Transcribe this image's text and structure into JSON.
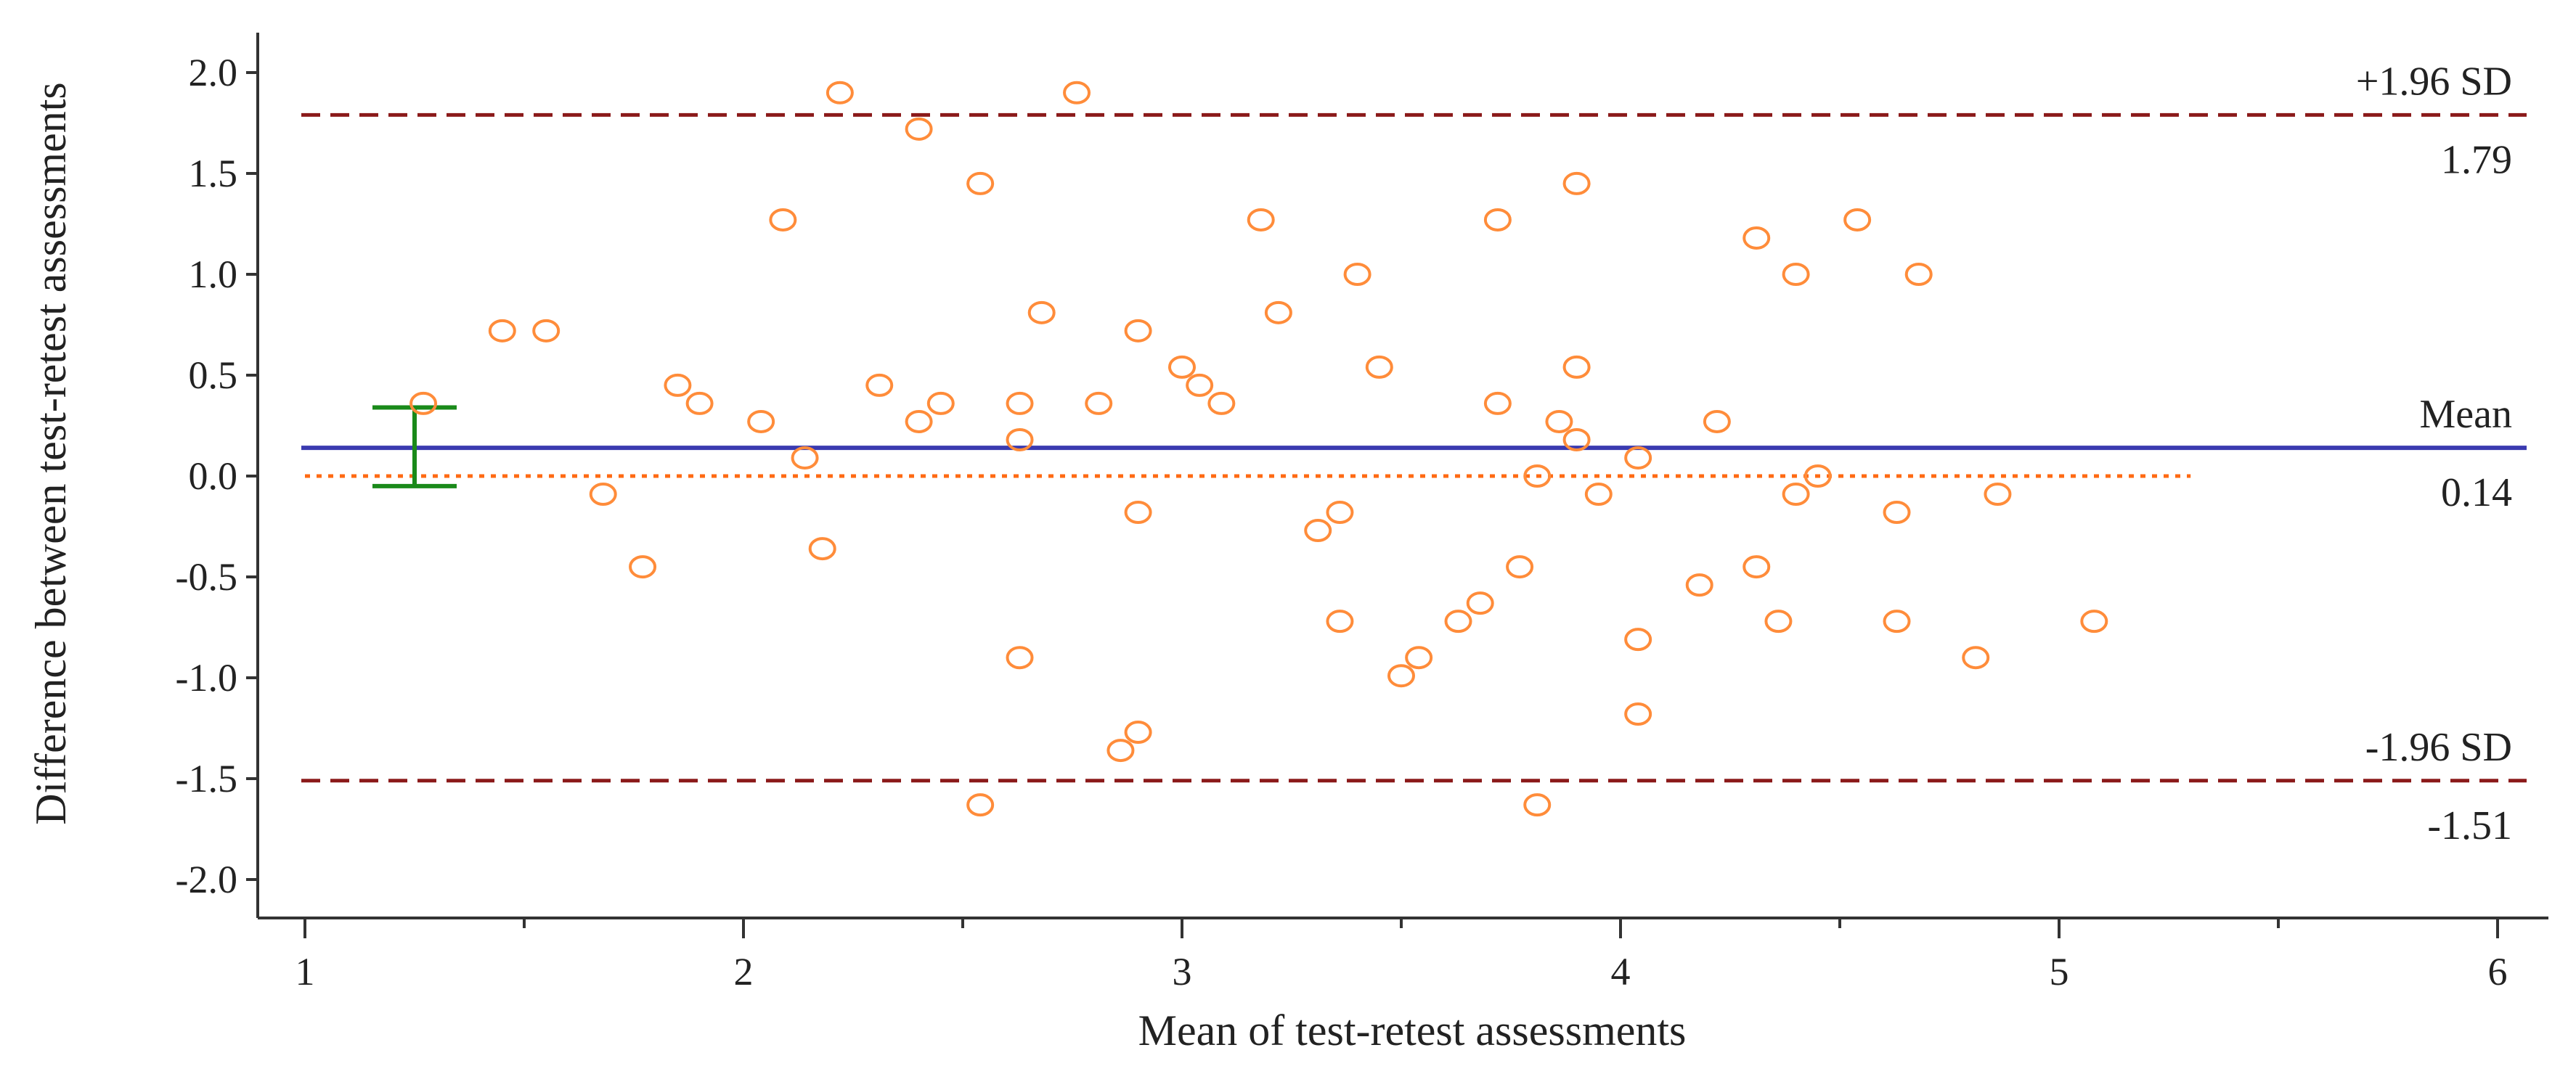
{
  "chart_data": {
    "type": "scatter",
    "title": "",
    "xlabel": "Mean of test-retest assessments",
    "ylabel": "Difference between test-retest assessments",
    "xlim": [
      1,
      6
    ],
    "ylim": [
      -2.1,
      2.2
    ],
    "x_ticks": [
      1,
      2,
      3,
      4,
      5,
      6
    ],
    "x_tick_labels": [
      "1",
      "2",
      "3",
      "4",
      "5",
      "6"
    ],
    "y_ticks": [
      2.0,
      1.5,
      1.0,
      0.5,
      0.0,
      -0.5,
      -1.0,
      -1.5,
      -2.0
    ],
    "y_tick_labels": [
      "2.0",
      "1.5",
      "1.0",
      "0.5",
      "0.0",
      "-0.5",
      "-1.0",
      "-1.5",
      "-2.0"
    ],
    "grid": false,
    "reference_lines": {
      "upper": {
        "value": 1.79,
        "label": "+1.96 SD",
        "value_label": "1.79",
        "color": "#8b1a1a",
        "style": "dashed"
      },
      "mean": {
        "value": 0.14,
        "label": "Mean",
        "value_label": "0.14",
        "color": "#3a3ab0",
        "style": "solid"
      },
      "lower": {
        "value": -1.51,
        "label": "-1.96 SD",
        "value_label": "-1.51",
        "color": "#8b1a1a",
        "style": "dashed"
      },
      "zero": {
        "value": 0.0,
        "color": "#ff6a13",
        "style": "dotted",
        "x_end": 5.3
      }
    },
    "mean_ci": {
      "x": 1.25,
      "lower": -0.05,
      "upper": 0.34,
      "color": "#1a8a1a"
    },
    "marker_color": "#ff8c3a",
    "points": [
      {
        "x": 1.27,
        "y": 0.36
      },
      {
        "x": 1.45,
        "y": 0.72
      },
      {
        "x": 1.55,
        "y": 0.72
      },
      {
        "x": 1.68,
        "y": -0.09
      },
      {
        "x": 1.77,
        "y": -0.45
      },
      {
        "x": 1.85,
        "y": 0.45
      },
      {
        "x": 1.9,
        "y": 0.36
      },
      {
        "x": 2.04,
        "y": 0.27
      },
      {
        "x": 2.09,
        "y": 1.27
      },
      {
        "x": 2.14,
        "y": 0.09
      },
      {
        "x": 2.18,
        "y": -0.36
      },
      {
        "x": 2.22,
        "y": 1.9
      },
      {
        "x": 2.31,
        "y": 0.45
      },
      {
        "x": 2.4,
        "y": 1.72
      },
      {
        "x": 2.4,
        "y": 0.27
      },
      {
        "x": 2.45,
        "y": 0.36
      },
      {
        "x": 2.54,
        "y": 1.45
      },
      {
        "x": 2.54,
        "y": -1.63
      },
      {
        "x": 2.63,
        "y": 0.36
      },
      {
        "x": 2.63,
        "y": 0.18
      },
      {
        "x": 2.63,
        "y": -0.9
      },
      {
        "x": 2.68,
        "y": 0.81
      },
      {
        "x": 2.76,
        "y": 1.9
      },
      {
        "x": 2.81,
        "y": 0.36
      },
      {
        "x": 2.86,
        "y": -1.36
      },
      {
        "x": 2.9,
        "y": 0.72
      },
      {
        "x": 2.9,
        "y": -0.18
      },
      {
        "x": 2.9,
        "y": -1.27
      },
      {
        "x": 3.0,
        "y": 0.54
      },
      {
        "x": 3.04,
        "y": 0.45
      },
      {
        "x": 3.09,
        "y": 0.36
      },
      {
        "x": 3.18,
        "y": 1.27
      },
      {
        "x": 3.22,
        "y": 0.81
      },
      {
        "x": 3.31,
        "y": -0.27
      },
      {
        "x": 3.36,
        "y": -0.18
      },
      {
        "x": 3.36,
        "y": -0.72
      },
      {
        "x": 3.4,
        "y": 1.0
      },
      {
        "x": 3.45,
        "y": 0.54
      },
      {
        "x": 3.5,
        "y": -0.99
      },
      {
        "x": 3.54,
        "y": -0.9
      },
      {
        "x": 3.63,
        "y": -0.72
      },
      {
        "x": 3.68,
        "y": -0.63
      },
      {
        "x": 3.72,
        "y": 1.27
      },
      {
        "x": 3.72,
        "y": 0.36
      },
      {
        "x": 3.77,
        "y": -0.45
      },
      {
        "x": 3.81,
        "y": 0.0
      },
      {
        "x": 3.81,
        "y": -1.63
      },
      {
        "x": 3.86,
        "y": 0.27
      },
      {
        "x": 3.9,
        "y": 1.45
      },
      {
        "x": 3.9,
        "y": 0.54
      },
      {
        "x": 3.9,
        "y": 0.18
      },
      {
        "x": 3.95,
        "y": -0.09
      },
      {
        "x": 4.04,
        "y": 0.09
      },
      {
        "x": 4.04,
        "y": -0.81
      },
      {
        "x": 4.04,
        "y": -1.18
      },
      {
        "x": 4.18,
        "y": -0.54
      },
      {
        "x": 4.22,
        "y": 0.27
      },
      {
        "x": 4.31,
        "y": 1.18
      },
      {
        "x": 4.31,
        "y": -0.45
      },
      {
        "x": 4.36,
        "y": -0.72
      },
      {
        "x": 4.4,
        "y": 1.0
      },
      {
        "x": 4.4,
        "y": -0.09
      },
      {
        "x": 4.45,
        "y": 0.0
      },
      {
        "x": 4.54,
        "y": 1.27
      },
      {
        "x": 4.63,
        "y": -0.18
      },
      {
        "x": 4.63,
        "y": -0.72
      },
      {
        "x": 4.68,
        "y": 1.0
      },
      {
        "x": 4.81,
        "y": -0.9
      },
      {
        "x": 4.86,
        "y": -0.09
      },
      {
        "x": 5.08,
        "y": -0.72
      }
    ]
  }
}
